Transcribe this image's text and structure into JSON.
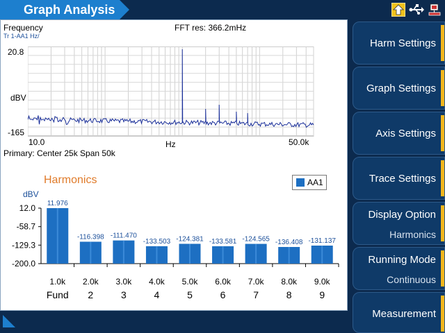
{
  "title": "Graph Analysis",
  "icons": [
    "home-icon",
    "usb-icon",
    "network-icon"
  ],
  "spectrum": {
    "freq_label": "Frequency",
    "trace_label": "Tr 1-AA1 Hz/",
    "fft_res": "FFT res: 366.2mHz",
    "y_top": "20.8",
    "y_unit": "dBV",
    "y_bottom": "-165",
    "x_left": "10.0",
    "x_unit": "Hz",
    "x_right": "50.0k",
    "primary": "Primary: Center 25k Span 50k"
  },
  "harmonics": {
    "title": "Harmonics",
    "legend": "AA1",
    "y_unit": "dBV",
    "accent_color": "#1d6fc2"
  },
  "chart_data": {
    "type": "bar",
    "categories": [
      "1.0k",
      "2.0k",
      "3.0k",
      "4.0k",
      "5.0k",
      "6.0k",
      "7.0k",
      "8.0k",
      "9.0k"
    ],
    "orders": [
      "Fund",
      "2",
      "3",
      "4",
      "5",
      "6",
      "7",
      "8",
      "9"
    ],
    "series": [
      {
        "name": "AA1",
        "values": [
          11.976,
          -116.398,
          -111.47,
          -133.503,
          -124.381,
          -133.581,
          -124.565,
          -136.408,
          -131.137
        ]
      }
    ],
    "value_labels": [
      "11.976",
      "-116.398",
      "-111.470",
      "-133.503",
      "-124.381",
      "-133.581",
      "-124.565",
      "-136.408",
      "-131.137"
    ],
    "yticks": [
      "12.0",
      "-58.7",
      "-129.3",
      "-200.0"
    ],
    "ylim": [
      -200.0,
      12.0
    ],
    "ylabel": "dBV"
  },
  "menu": [
    {
      "label": "Harm Settings",
      "sub": ""
    },
    {
      "label": "Graph Settings",
      "sub": ""
    },
    {
      "label": "Axis Settings",
      "sub": ""
    },
    {
      "label": "Trace Settings",
      "sub": ""
    },
    {
      "label": "Display Option",
      "sub": "Harmonics"
    },
    {
      "label": "Running Mode",
      "sub": "Continuous"
    },
    {
      "label": "Measurement",
      "sub": ""
    }
  ]
}
